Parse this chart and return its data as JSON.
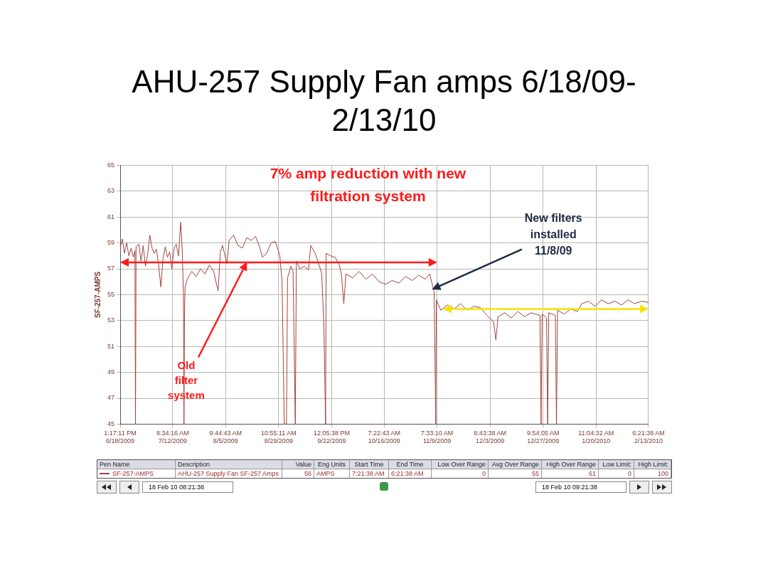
{
  "chart_data": {
    "type": "line",
    "title": "AHU-257 Supply Fan amps 6/18/09-2/13/10",
    "ylabel": "SF-257-AMPS",
    "xlim": [
      "2009-06-18T13:17",
      "2010-02-13T06:21"
    ],
    "xticks": [
      {
        "value": "2009-06-18T13:17",
        "label": "1:17:11 PM\n6/18/2009"
      },
      {
        "value": "2009-07-12T08:34",
        "label": "8:34:16 AM\n7/12/2009"
      },
      {
        "value": "2009-08-05T09:44",
        "label": "9:44:43 AM\n8/5/2009"
      },
      {
        "value": "2009-08-29T10:55",
        "label": "10:55:11 AM\n8/29/2009"
      },
      {
        "value": "2009-09-22T12:05",
        "label": "12:05:38 PM\n9/22/2009"
      },
      {
        "value": "2009-10-16T07:22",
        "label": "7:22:43 AM\n10/16/2009"
      },
      {
        "value": "2009-11-09T07:33",
        "label": "7:33:10 AM\n11/9/2009"
      },
      {
        "value": "2009-12-03T08:43",
        "label": "8:43:38 AM\n12/3/2009"
      },
      {
        "value": "2009-12-27T09:54",
        "label": "9:54:05 AM\n12/27/2009"
      },
      {
        "value": "2010-01-20T11:04",
        "label": "11:04:32 AM\n1/20/2010"
      },
      {
        "value": "2010-02-13T06:21",
        "label": "6:21:38 AM\n2/13/2010"
      }
    ],
    "ylim": [
      45,
      65
    ],
    "yticks": [
      45,
      47,
      49,
      51,
      53,
      55,
      57,
      59,
      61,
      63,
      65
    ],
    "grid": true,
    "legend": "bottom",
    "marker": "none",
    "series": [
      {
        "name": "SF-257-AMPS",
        "color": "#a0443c",
        "x": [
          "2009-06-18T13:17",
          "2009-06-19T12:00",
          "2009-06-20T12:00",
          "2009-06-21T12:00",
          "2009-06-22T12:00",
          "2009-06-23T12:00",
          "2009-06-24T12:00",
          "2009-06-25T06:00",
          "2009-06-25T12:00",
          "2009-06-25T18:00",
          "2009-06-27",
          "2009-06-28",
          "2009-06-29",
          "2009-06-30",
          "2009-07-01",
          "2009-07-02",
          "2009-07-03",
          "2009-07-04",
          "2009-07-05",
          "2009-07-06",
          "2009-07-07",
          "2009-07-08",
          "2009-07-09",
          "2009-07-10",
          "2009-07-11",
          "2009-07-12",
          "2009-07-13",
          "2009-07-14",
          "2009-07-15",
          "2009-07-16",
          "2009-07-16T18:00",
          "2009-07-17T06:00",
          "2009-07-17T12:00",
          "2009-07-17T18:00",
          "2009-07-18",
          "2009-07-19",
          "2009-07-21",
          "2009-07-23",
          "2009-07-25",
          "2009-07-27",
          "2009-07-29",
          "2009-07-31",
          "2009-08-01",
          "2009-08-02",
          "2009-08-03",
          "2009-08-04",
          "2009-08-06",
          "2009-08-07",
          "2009-08-09",
          "2009-08-11",
          "2009-08-13",
          "2009-08-15",
          "2009-08-17",
          "2009-08-19",
          "2009-08-21",
          "2009-08-22",
          "2009-08-24",
          "2009-08-26",
          "2009-08-28",
          "2009-08-30",
          "2009-08-31",
          "2009-09-01",
          "2009-09-02",
          "2009-09-02T12:00",
          "2009-09-04",
          "2009-09-05",
          "2009-09-06",
          "2009-09-06T12:00",
          "2009-09-08",
          "2009-09-10",
          "2009-09-12",
          "2009-09-13",
          "2009-09-15",
          "2009-09-17",
          "2009-09-18",
          "2009-09-19",
          "2009-09-19T18:00",
          "2009-09-20",
          "2009-09-22",
          "2009-09-24",
          "2009-09-26",
          "2009-09-27",
          "2009-09-28",
          "2009-09-29",
          "2009-10-02",
          "2009-10-05",
          "2009-10-08",
          "2009-10-11",
          "2009-10-14",
          "2009-10-17",
          "2009-10-20",
          "2009-10-23",
          "2009-10-26",
          "2009-10-29",
          "2009-11-01",
          "2009-11-04",
          "2009-11-06",
          "2009-11-08",
          "2009-11-08T18:00",
          "2009-11-09",
          "2009-11-11",
          "2009-11-14",
          "2009-11-17",
          "2009-11-20",
          "2009-11-23",
          "2009-11-26",
          "2009-11-29",
          "2009-12-02",
          "2009-12-05",
          "2009-12-06",
          "2009-12-07",
          "2009-12-10",
          "2009-12-13",
          "2009-12-16",
          "2009-12-19",
          "2009-12-22",
          "2009-12-26",
          "2009-12-26T12:00",
          "2009-12-27",
          "2009-12-29",
          "2009-12-29T12:00",
          "2009-12-30",
          "2010-01-02",
          "2010-01-02T12:00",
          "2010-01-03",
          "2010-01-06",
          "2010-01-09",
          "2010-01-12",
          "2010-01-14",
          "2010-01-17",
          "2010-01-20",
          "2010-01-23",
          "2010-01-26",
          "2010-01-29",
          "2010-02-01",
          "2010-02-04",
          "2010-02-07",
          "2010-02-10",
          "2010-02-13T06:21"
        ],
        "values": [
          58.6,
          59.3,
          58.2,
          59.0,
          58.0,
          58.6,
          57.9,
          58.4,
          45.0,
          58.7,
          58.9,
          57.6,
          58.8,
          57.2,
          58.1,
          59.6,
          58.6,
          58.2,
          58.5,
          57.3,
          55.6,
          57.8,
          58.7,
          57.9,
          58.3,
          57.0,
          58.6,
          58.9,
          58.0,
          60.6,
          58.3,
          55.0,
          45.0,
          53.8,
          55.6,
          56.2,
          56.8,
          56.4,
          57.0,
          56.6,
          57.3,
          56.8,
          56.0,
          55.3,
          58.3,
          58.8,
          57.4,
          59.2,
          59.6,
          58.8,
          58.6,
          59.4,
          59.2,
          59.5,
          58.6,
          57.9,
          58.2,
          59.0,
          59.1,
          58.0,
          56.0,
          45.0,
          45.0,
          56.3,
          57.2,
          56.8,
          45.0,
          57.6,
          57.0,
          57.2,
          56.9,
          58.8,
          58.2,
          57.2,
          56.6,
          52.5,
          45.0,
          58.2,
          58.0,
          57.9,
          57.3,
          56.5,
          54.3,
          56.6,
          56.3,
          56.8,
          56.2,
          56.6,
          56.0,
          55.8,
          56.1,
          55.9,
          56.4,
          56.1,
          56.5,
          56.2,
          56.6,
          55.2,
          45.0,
          54.6,
          53.8,
          54.2,
          53.9,
          54.3,
          53.8,
          54.1,
          54.0,
          53.4,
          52.9,
          51.5,
          53.3,
          53.6,
          53.2,
          53.7,
          53.3,
          53.6,
          53.4,
          45.0,
          53.5,
          53.2,
          45.0,
          53.6,
          53.4,
          45.0,
          53.8,
          53.5,
          53.9,
          53.7,
          54.3,
          54.5,
          54.1,
          54.6,
          54.3,
          54.5,
          54.2,
          54.6,
          54.3,
          54.5,
          54.4
        ]
      }
    ],
    "annotations": [
      "7% amp reduction with new filtration system",
      "Old filter system",
      "New filters installed 11/8/09",
      "Pen Name",
      "Description",
      "Value",
      "Eng Units",
      "Start Time",
      "End Time",
      "Low Over Range",
      "Avg Over Range",
      "High Over Range",
      "Low Limit:",
      "High Limit:",
      "AHU-257 Supply Fan SF-257 Amps",
      "56",
      "AMPS",
      "7:21:38 AM",
      "6:21:38 AM",
      "0",
      "55",
      "61",
      "0",
      "100",
      "18 Feb 10 08:21:38",
      "18 Feb 10 09:21:38"
    ]
  }
}
